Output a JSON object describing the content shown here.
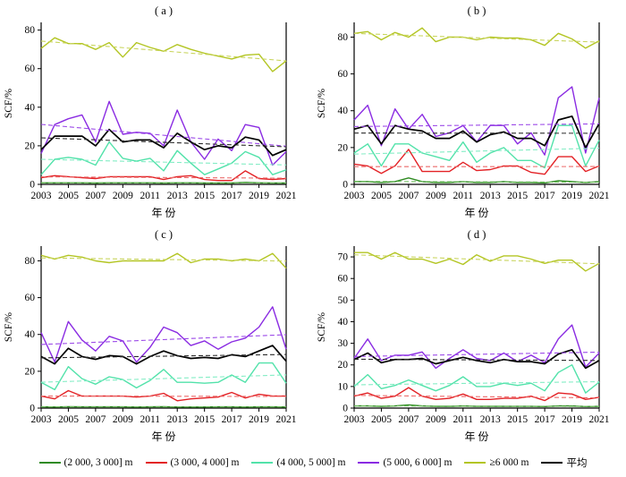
{
  "figure": {
    "ylabel": "SCF/%",
    "xlabel": "年 份"
  },
  "legend": {
    "items": [
      {
        "label": "(2 000, 3 000] m",
        "color": "#2f8b22"
      },
      {
        "label": "(3 000, 4 000] m",
        "color": "#e32125"
      },
      {
        "label": "(4 000, 5 000] m",
        "color": "#52e2aa"
      },
      {
        "label": "(5 000, 6 000] m",
        "color": "#8a2be2"
      },
      {
        "label": "≥6 000 m",
        "color": "#b3c523"
      },
      {
        "label": "平均",
        "color": "#000000"
      }
    ]
  },
  "chart_data": [
    {
      "type": "line",
      "panel": "a",
      "title": "( a )",
      "xlabel": "年 份",
      "ylabel": "SCF/%",
      "x": [
        2003,
        2004,
        2005,
        2006,
        2007,
        2008,
        2009,
        2010,
        2011,
        2012,
        2013,
        2014,
        2015,
        2016,
        2017,
        2018,
        2019,
        2020,
        2021
      ],
      "xticks": [
        2003,
        2005,
        2007,
        2009,
        2011,
        2013,
        2015,
        2017,
        2019,
        2021
      ],
      "ylim": [
        0,
        84
      ],
      "yticks": [
        0,
        20,
        40,
        60,
        80
      ],
      "grid": false,
      "series": [
        {
          "name": "(2 000, 3 000] m",
          "color": "#2f8b22",
          "trend_color": "#6fbf5f",
          "values": [
            0.8,
            0.8,
            0.8,
            0.8,
            0.7,
            0.8,
            0.8,
            0.8,
            0.8,
            0.7,
            0.8,
            0.8,
            0.7,
            0.7,
            0.7,
            1.0,
            0.8,
            0.7,
            0.7
          ]
        },
        {
          "name": "(3 000, 4 000] m",
          "color": "#e32125",
          "trend_color": "#ec6a6a",
          "values": [
            3.5,
            4.5,
            4.0,
            3.5,
            3.0,
            4.0,
            4.0,
            4.0,
            4.0,
            2.5,
            4.0,
            4.5,
            2.5,
            2.0,
            2.0,
            7.0,
            3.0,
            2.5,
            3.0
          ]
        },
        {
          "name": "(4 000, 5 000] m",
          "color": "#52e2aa",
          "trend_color": "#84edc5",
          "values": [
            5.0,
            13.0,
            14.0,
            13.0,
            10.0,
            22.0,
            13.5,
            12.0,
            13.5,
            7.0,
            17.5,
            11.0,
            5.0,
            8.0,
            11.0,
            17.0,
            14.0,
            5.0,
            7.5
          ]
        },
        {
          "name": "(5 000, 6 000] m",
          "color": "#8a2be2",
          "trend_color": "#9c4ae8",
          "values": [
            16.0,
            31.0,
            34.0,
            36.0,
            22.0,
            43.0,
            26.0,
            27.0,
            26.5,
            20.0,
            38.5,
            22.0,
            13.0,
            23.5,
            17.5,
            31.0,
            29.5,
            10.0,
            17.0
          ]
        },
        {
          "name": "≥6 000 m",
          "color": "#b3c523",
          "trend_color": "#c9d55e",
          "values": [
            70.5,
            76.0,
            73.0,
            73.0,
            70.0,
            73.5,
            66.0,
            73.5,
            71.0,
            69.0,
            72.5,
            70.0,
            68.0,
            66.5,
            65.0,
            67.0,
            67.5,
            58.5,
            64.0
          ]
        },
        {
          "name": "平均",
          "color": "#000000",
          "trend_color": "#2b2b2b",
          "values": [
            18.0,
            25.0,
            25.0,
            25.0,
            20.0,
            28.5,
            22.0,
            23.0,
            23.0,
            19.0,
            26.5,
            22.0,
            18.0,
            20.0,
            19.0,
            24.5,
            23.0,
            15.0,
            18.0
          ]
        }
      ]
    },
    {
      "type": "line",
      "panel": "b",
      "title": "( b )",
      "xlabel": "年 份",
      "ylabel": "SCF/%",
      "x": [
        2003,
        2004,
        2005,
        2006,
        2007,
        2008,
        2009,
        2010,
        2011,
        2012,
        2013,
        2014,
        2015,
        2016,
        2017,
        2018,
        2019,
        2020,
        2021
      ],
      "xticks": [
        2003,
        2005,
        2007,
        2009,
        2011,
        2013,
        2015,
        2017,
        2019,
        2021
      ],
      "ylim": [
        0,
        88
      ],
      "yticks": [
        0,
        20,
        40,
        60,
        80
      ],
      "grid": false,
      "series": [
        {
          "name": "(2 000, 3 000] m",
          "color": "#2f8b22",
          "trend_color": "#6fbf5f",
          "values": [
            1.5,
            1.5,
            1.0,
            1.5,
            3.5,
            1.5,
            1.0,
            1.0,
            1.5,
            1.0,
            1.0,
            1.5,
            1.0,
            1.0,
            0.8,
            2.0,
            1.5,
            1.0,
            1.5
          ]
        },
        {
          "name": "(3 000, 4 000] m",
          "color": "#e32125",
          "trend_color": "#ec6a6a",
          "values": [
            11.0,
            10.0,
            6.0,
            10.0,
            19.0,
            7.0,
            7.0,
            7.0,
            12.0,
            7.5,
            8.0,
            10.0,
            10.0,
            6.5,
            5.5,
            15.0,
            15.0,
            7.0,
            10.0
          ]
        },
        {
          "name": "(4 000, 5 000] m",
          "color": "#52e2aa",
          "trend_color": "#84edc5",
          "values": [
            17.0,
            22.0,
            10.0,
            22.0,
            22.0,
            17.0,
            15.0,
            13.0,
            23.0,
            12.0,
            17.0,
            20.0,
            13.0,
            13.0,
            9.0,
            32.0,
            32.0,
            10.0,
            24.0
          ]
        },
        {
          "name": "(5 000, 6 000] m",
          "color": "#8a2be2",
          "trend_color": "#9c4ae8",
          "values": [
            35.0,
            43.0,
            21.0,
            41.0,
            30.0,
            38.0,
            26.0,
            28.0,
            32.0,
            23.0,
            32.0,
            32.0,
            22.0,
            28.0,
            16.0,
            47.0,
            53.0,
            17.0,
            47.0
          ]
        },
        {
          "name": "≥6 000 m",
          "color": "#b3c523",
          "trend_color": "#c9d55e",
          "values": [
            82.0,
            83.0,
            78.5,
            82.5,
            80.0,
            85.0,
            77.5,
            80.0,
            80.0,
            78.5,
            80.0,
            79.5,
            79.5,
            78.5,
            75.5,
            82.0,
            79.0,
            74.0,
            78.0
          ]
        },
        {
          "name": "平均",
          "color": "#000000",
          "trend_color": "#2b2b2b",
          "values": [
            30.0,
            32.0,
            22.0,
            32.0,
            30.0,
            29.0,
            25.0,
            25.0,
            29.0,
            23.0,
            27.0,
            28.5,
            25.0,
            25.0,
            21.0,
            35.0,
            37.0,
            20.0,
            33.0
          ]
        }
      ]
    },
    {
      "type": "line",
      "panel": "c",
      "title": "( c )",
      "xlabel": "年 份",
      "ylabel": "SCF/%",
      "x": [
        2003,
        2004,
        2005,
        2006,
        2007,
        2008,
        2009,
        2010,
        2011,
        2012,
        2013,
        2014,
        2015,
        2016,
        2017,
        2018,
        2019,
        2020,
        2021
      ],
      "xticks": [
        2003,
        2005,
        2007,
        2009,
        2011,
        2013,
        2015,
        2017,
        2019,
        2021
      ],
      "ylim": [
        0,
        88
      ],
      "yticks": [
        0,
        20,
        40,
        60,
        80
      ],
      "grid": false,
      "series": [
        {
          "name": "(2 000, 3 000] m",
          "color": "#2f8b22",
          "trend_color": "#6fbf5f",
          "values": [
            0.7,
            0.6,
            0.8,
            0.7,
            0.7,
            0.7,
            0.7,
            0.6,
            0.7,
            0.8,
            0.6,
            0.6,
            0.6,
            0.7,
            0.7,
            0.6,
            0.7,
            0.7,
            0.6
          ]
        },
        {
          "name": "(3 000, 4 000] m",
          "color": "#e32125",
          "trend_color": "#ec6a6a",
          "values": [
            6.5,
            5.0,
            9.5,
            6.5,
            6.5,
            6.5,
            6.5,
            6.0,
            6.5,
            8.0,
            4.0,
            5.0,
            5.5,
            6.0,
            8.5,
            5.5,
            7.5,
            6.5,
            6.5
          ]
        },
        {
          "name": "(4 000, 5 000] m",
          "color": "#52e2aa",
          "trend_color": "#84edc5",
          "values": [
            14.0,
            10.0,
            22.5,
            16.0,
            13.0,
            17.0,
            15.5,
            11.0,
            15.0,
            21.0,
            14.0,
            14.0,
            13.5,
            14.0,
            18.0,
            14.0,
            24.5,
            24.5,
            13.5
          ]
        },
        {
          "name": "(5 000, 6 000] m",
          "color": "#8a2be2",
          "trend_color": "#9c4ae8",
          "values": [
            41.0,
            25.0,
            47.0,
            37.0,
            31.0,
            39.0,
            36.5,
            25.0,
            33.0,
            44.0,
            41.0,
            34.0,
            36.5,
            32.0,
            36.0,
            38.0,
            44.0,
            55.0,
            32.0
          ]
        },
        {
          "name": "≥6 000 m",
          "color": "#b3c523",
          "trend_color": "#c9d55e",
          "values": [
            83.0,
            81.0,
            83.0,
            82.0,
            80.0,
            79.0,
            80.0,
            80.0,
            80.0,
            80.0,
            84.0,
            79.0,
            81.0,
            81.0,
            80.0,
            81.0,
            80.0,
            84.0,
            76.0
          ]
        },
        {
          "name": "平均",
          "color": "#000000",
          "trend_color": "#2b2b2b",
          "values": [
            28.0,
            24.0,
            32.5,
            28.0,
            26.5,
            28.5,
            28.0,
            24.0,
            28.0,
            31.0,
            28.5,
            27.0,
            27.5,
            27.0,
            29.0,
            28.0,
            31.0,
            34.0,
            25.5
          ]
        }
      ]
    },
    {
      "type": "line",
      "panel": "d",
      "title": "( d )",
      "xlabel": "年 份",
      "ylabel": "SCF/%",
      "x": [
        2003,
        2004,
        2005,
        2006,
        2007,
        2008,
        2009,
        2010,
        2011,
        2012,
        2013,
        2014,
        2015,
        2016,
        2017,
        2018,
        2019,
        2020,
        2021
      ],
      "xticks": [
        2003,
        2005,
        2007,
        2009,
        2011,
        2013,
        2015,
        2017,
        2019,
        2021
      ],
      "ylim": [
        0,
        75
      ],
      "yticks": [
        0,
        10,
        20,
        30,
        40,
        50,
        60,
        70
      ],
      "grid": false,
      "series": [
        {
          "name": "(2 000, 3 000] m",
          "color": "#2f8b22",
          "trend_color": "#6fbf5f",
          "values": [
            1.0,
            1.0,
            0.8,
            1.0,
            1.5,
            1.0,
            0.8,
            0.8,
            1.0,
            0.8,
            0.8,
            0.8,
            0.8,
            0.8,
            0.7,
            1.0,
            1.0,
            0.7,
            0.8
          ]
        },
        {
          "name": "(3 000, 4 000] m",
          "color": "#e32125",
          "trend_color": "#ec6a6a",
          "values": [
            5.5,
            7.0,
            4.5,
            5.5,
            9.5,
            5.5,
            4.0,
            4.5,
            6.5,
            4.0,
            4.0,
            4.5,
            4.5,
            5.5,
            3.5,
            7.0,
            6.5,
            4.0,
            5.0
          ]
        },
        {
          "name": "(4 000, 5 000] m",
          "color": "#52e2aa",
          "trend_color": "#84edc5",
          "values": [
            10.0,
            15.5,
            9.0,
            10.5,
            13.0,
            10.5,
            8.0,
            10.5,
            14.5,
            10.0,
            10.0,
            11.5,
            10.5,
            11.5,
            8.0,
            16.5,
            20.0,
            7.0,
            12.0
          ]
        },
        {
          "name": "(5 000, 6 000] m",
          "color": "#8a2be2",
          "trend_color": "#9c4ae8",
          "values": [
            23.0,
            32.0,
            22.0,
            24.5,
            24.5,
            26.0,
            18.5,
            23.0,
            27.0,
            23.0,
            22.0,
            25.5,
            21.5,
            24.5,
            21.0,
            32.0,
            38.5,
            19.0,
            25.5
          ]
        },
        {
          "name": "≥6 000 m",
          "color": "#b3c523",
          "trend_color": "#c9d55e",
          "values": [
            72.0,
            72.0,
            69.0,
            72.0,
            69.0,
            69.0,
            67.0,
            69.0,
            66.5,
            71.0,
            68.0,
            70.5,
            70.5,
            69.0,
            67.0,
            68.5,
            68.5,
            63.5,
            67.0
          ]
        },
        {
          "name": "平均",
          "color": "#000000",
          "trend_color": "#2b2b2b",
          "values": [
            22.5,
            25.5,
            21.0,
            22.5,
            22.5,
            23.0,
            20.5,
            22.0,
            23.5,
            22.0,
            21.0,
            22.5,
            21.5,
            21.5,
            20.5,
            25.0,
            27.0,
            18.5,
            22.0
          ]
        }
      ]
    }
  ]
}
